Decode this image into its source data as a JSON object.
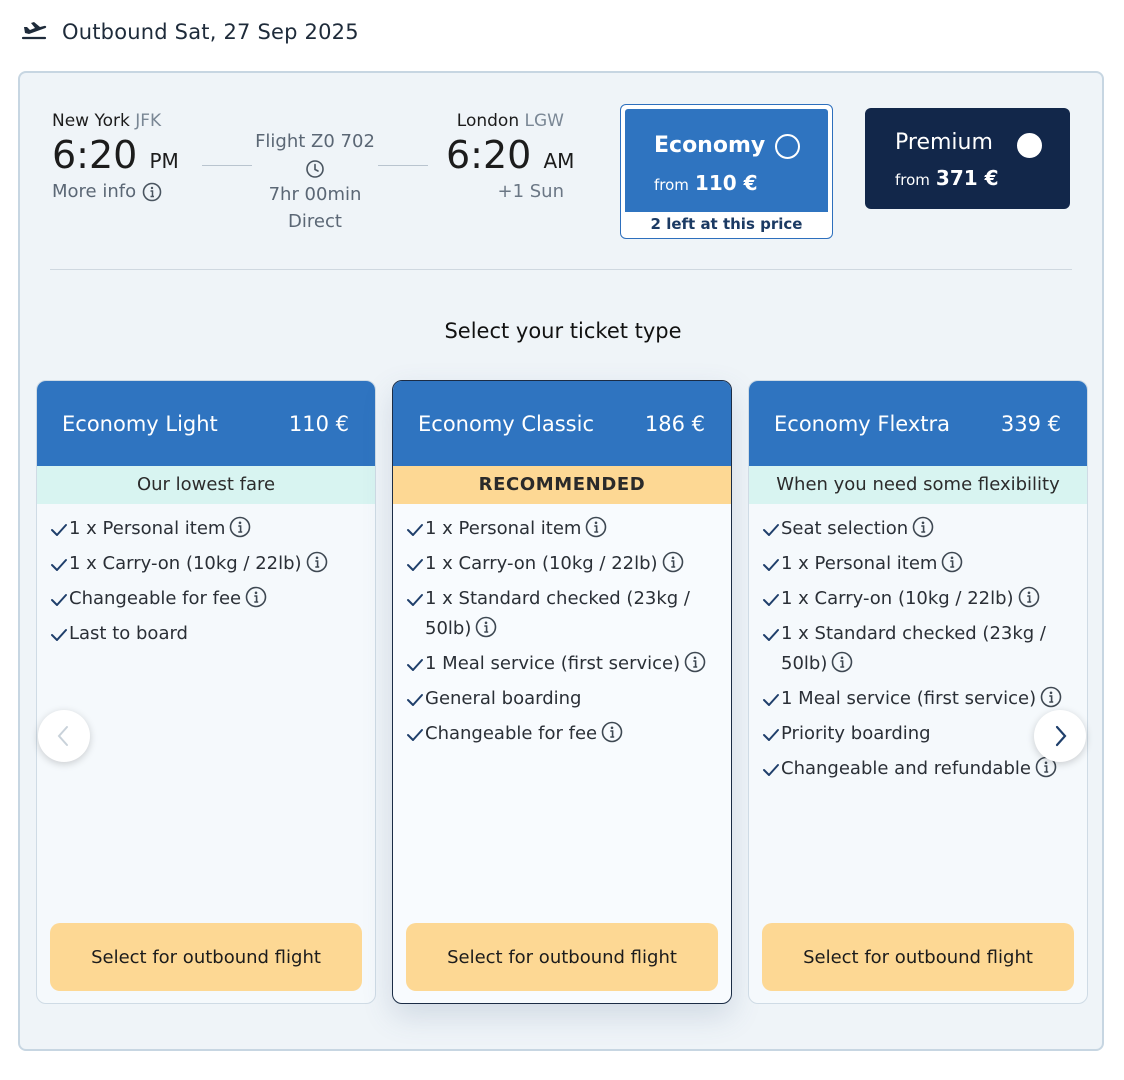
{
  "header": {
    "title": "Outbound Sat, 27 Sep 2025",
    "icon": "plane-takeoff-icon"
  },
  "flight": {
    "departure": {
      "city": "New York",
      "code": "JFK",
      "time": "6:20",
      "ampm": "PM",
      "more_info": "More info"
    },
    "arrival": {
      "city": "London",
      "code": "LGW",
      "time": "6:20",
      "ampm": "AM",
      "day_offset": "+1 Sun"
    },
    "number": "Flight Z0 702",
    "duration": "7hr 00min",
    "stops": "Direct"
  },
  "cabins": {
    "economy": {
      "name": "Economy",
      "from_label": "from",
      "price": "110 €",
      "availability": "2 left at this price",
      "selected": true
    },
    "premium": {
      "name": "Premium",
      "from_label": "from",
      "price": "371 €",
      "selected": false
    }
  },
  "select_title": "Select your ticket type",
  "fares": [
    {
      "name": "Economy Light",
      "price": "110 €",
      "tag": "Our lowest fare",
      "recommended": false,
      "features": [
        "1 x Personal item",
        "1 x Carry-on (10kg / 22lb)",
        "Changeable for fee",
        "Last to board"
      ],
      "button": "Select for outbound flight"
    },
    {
      "name": "Economy Classic",
      "price": "186 €",
      "tag": "RECOMMENDED",
      "recommended": true,
      "features": [
        "1 x Personal item",
        "1 x Carry-on (10kg / 22lb)",
        "1 x Standard checked (23kg / 50lb)",
        "1 Meal service (first service)",
        "General boarding",
        "Changeable for fee"
      ],
      "button": "Select for outbound flight"
    },
    {
      "name": "Economy Flextra",
      "price": "339 €",
      "tag": "When you need some flexibility",
      "recommended": false,
      "features": [
        "Seat selection",
        "1 x Personal item",
        "1 x Carry-on (10kg / 22lb)",
        "1 x Standard checked (23kg / 50lb)",
        "1 Meal service (first service)",
        "Priority boarding",
        "Changeable and refundable"
      ],
      "button": "Select for outbound flight"
    }
  ],
  "colors": {
    "brand_blue": "#2f74c0",
    "navy": "#12274a",
    "cta_yellow": "#fdd894",
    "tag_mint": "#d8f4f1"
  }
}
